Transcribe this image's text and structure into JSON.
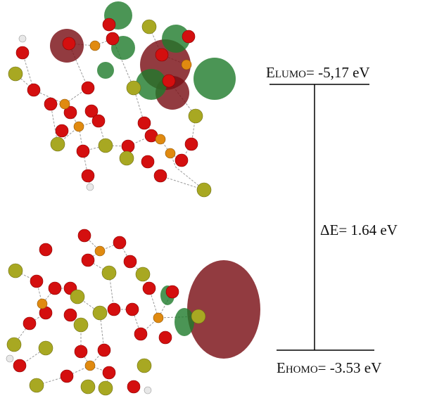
{
  "levels": {
    "lumo": {
      "symbol": "E",
      "subscript": "LUMO",
      "text": "= -5,17 eV"
    },
    "gap": "ΔE= 1.64 eV",
    "homo": {
      "symbol": "E",
      "subscript": "HOMO",
      "text": "= -3.53 eV"
    }
  }
}
